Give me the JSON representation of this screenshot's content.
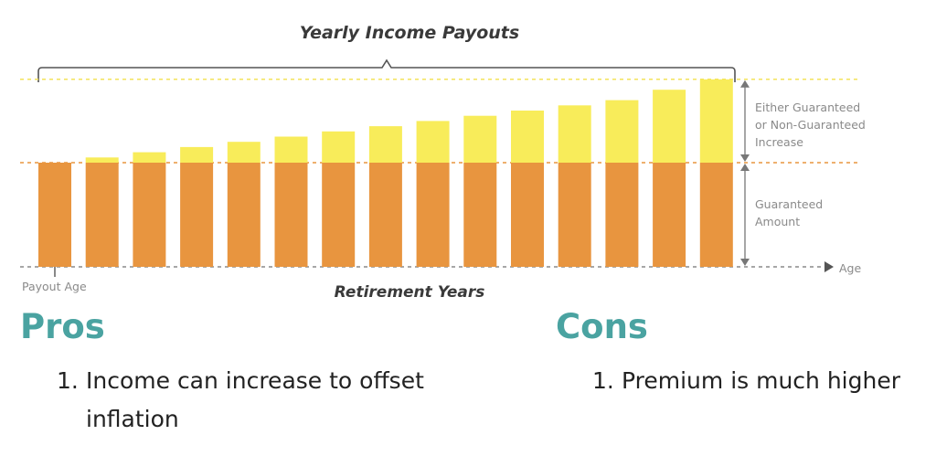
{
  "chart_data": {
    "type": "bar",
    "title": "Yearly Income Payouts",
    "xlabel": "Retirement Years",
    "start_label": "Payout Age",
    "axis_end_label": "Age",
    "bar_count": 15,
    "series": [
      {
        "name": "Guaranteed Amount",
        "values": [
          1,
          1,
          1,
          1,
          1,
          1,
          1,
          1,
          1,
          1,
          1,
          1,
          1,
          1,
          1
        ]
      },
      {
        "name": "Either Guaranteed or Non-Guaranteed Increase",
        "values": [
          0,
          0.05,
          0.1,
          0.15,
          0.2,
          0.25,
          0.3,
          0.35,
          0.4,
          0.45,
          0.5,
          0.55,
          0.6,
          0.7,
          0.8
        ]
      }
    ],
    "annotations": {
      "increase": [
        "Either Guaranteed",
        "or Non-Guaranteed",
        "Increase"
      ],
      "guaranteed": [
        "Guaranteed",
        "Amount"
      ]
    },
    "colors": {
      "guaranteed": "#e8953f",
      "increase": "#f8ec5a",
      "increase_line": "#f3e35a",
      "guaranteed_line": "#e8953f",
      "axis": "#8a8a8a"
    }
  },
  "pros": {
    "heading": "Pros",
    "items": [
      "Income can increase to offset",
      "inflation"
    ],
    "number": "1."
  },
  "cons": {
    "heading": "Cons",
    "items": [
      "Premium is much higher"
    ],
    "number": "1."
  }
}
